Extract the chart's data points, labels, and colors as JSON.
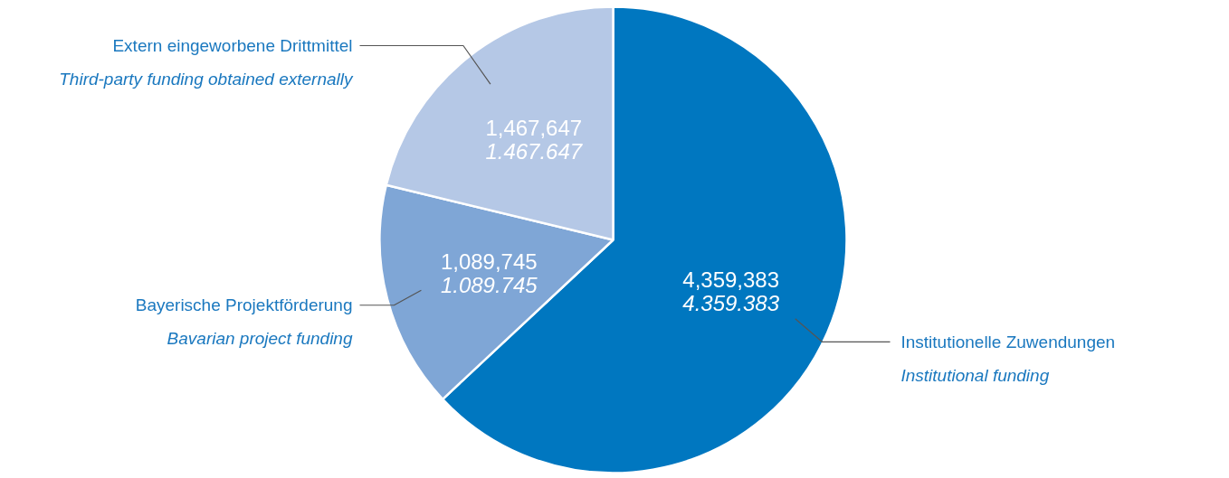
{
  "chart_data": {
    "type": "pie",
    "categories": [
      "Institutionelle Zuwendungen\nInstitutional funding",
      "Bayerische Projektförderung\nBavarian project funding",
      "Extern eingeworbene Drittmittel\nThird-party funding obtained externally"
    ],
    "values": [
      4359383,
      1089745,
      1467647
    ],
    "colors": [
      "#0077c0",
      "#7fa6d6",
      "#b5c8e6"
    ],
    "value_labels": [
      "4,359,383\n4.359.383",
      "1,089,745\n1.089.745",
      "1,467,647\n1.467.647"
    ]
  }
}
